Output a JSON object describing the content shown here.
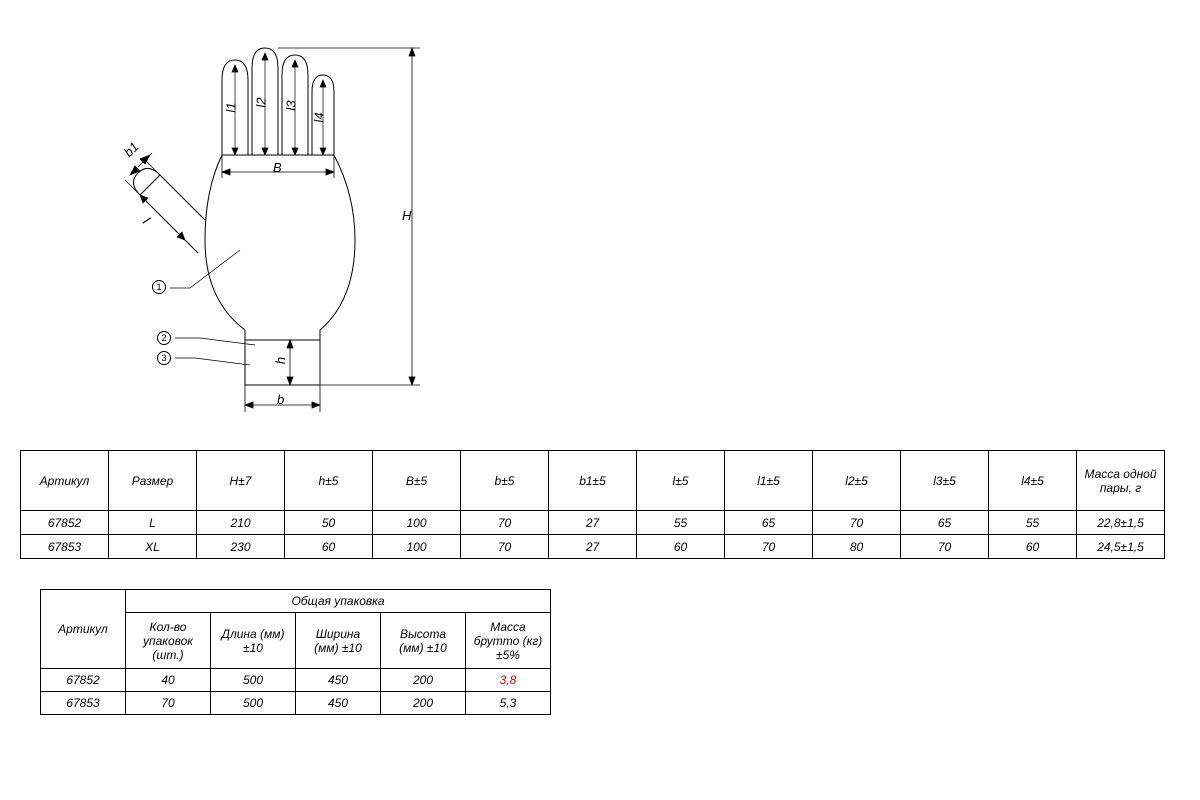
{
  "diagram": {
    "labels": {
      "H": "H",
      "h": "h",
      "B": "B",
      "b": "b",
      "b1": "b1",
      "l": "l",
      "l1": "l1",
      "l2": "l2",
      "l3": "l3",
      "l4": "l4"
    },
    "callouts": [
      "1",
      "2",
      "3"
    ],
    "stroke": "#000000",
    "stroke_width": 1,
    "background": "#ffffff"
  },
  "table1": {
    "headers": [
      "Артикул",
      "Размер",
      "H±7",
      "h±5",
      "B±5",
      "b±5",
      "b1±5",
      "l±5",
      "l1±5",
      "l2±5",
      "l3±5",
      "l4±5",
      "Масса одной пары, г"
    ],
    "rows": [
      [
        "67852",
        "L",
        "210",
        "50",
        "100",
        "70",
        "27",
        "55",
        "65",
        "70",
        "65",
        "55",
        "22,8±1,5"
      ],
      [
        "67853",
        "XL",
        "230",
        "60",
        "100",
        "70",
        "27",
        "60",
        "70",
        "80",
        "70",
        "60",
        "24,5±1,5"
      ]
    ]
  },
  "table2": {
    "article_header": "Артикул",
    "group_header": "Общая упаковка",
    "sub_headers": [
      "Кол-во упаковок (шт.)",
      "Длина (мм) ±10",
      "Ширина (мм) ±10",
      "Высота (мм) ±10",
      "Масса брутто (кг) ±5%"
    ],
    "rows": [
      {
        "cells": [
          "67852",
          "40",
          "500",
          "450",
          "200",
          "3,8"
        ],
        "highlight_col": 5
      },
      {
        "cells": [
          "67853",
          "70",
          "500",
          "450",
          "200",
          "5,3"
        ],
        "highlight_col": -1
      }
    ]
  }
}
